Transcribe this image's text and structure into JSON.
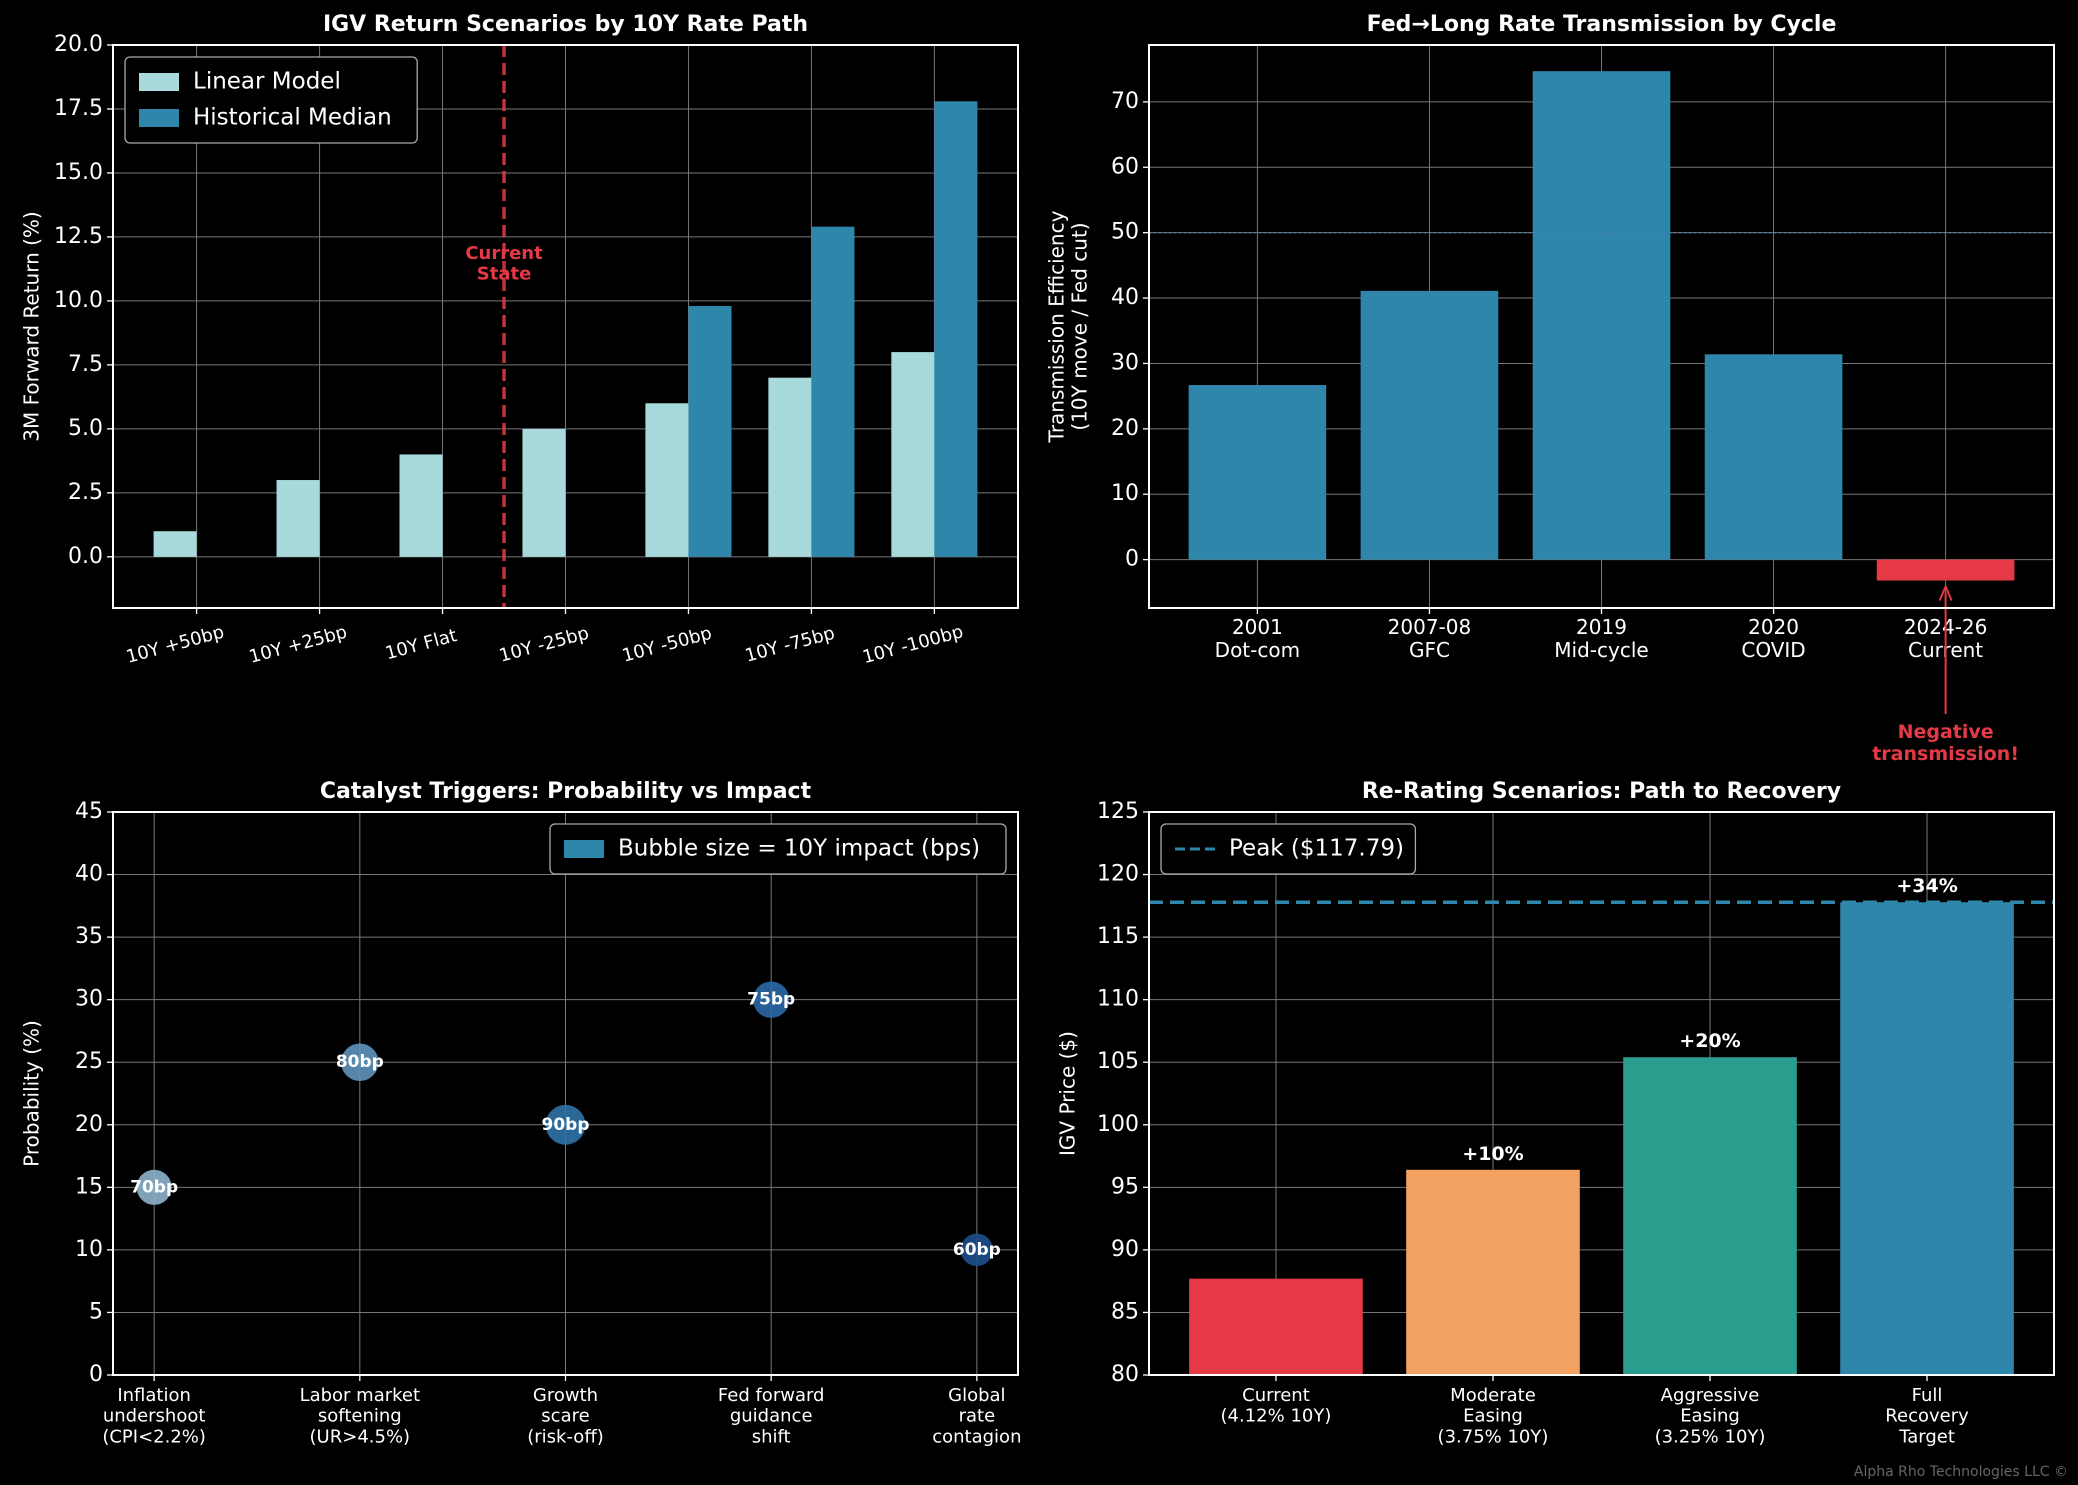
{
  "chart_data": [
    {
      "type": "bar",
      "title": "IGV Return Scenarios by 10Y Rate Path",
      "y_label": "3M Forward Return (%)",
      "categories": [
        "10Y +50bp",
        "10Y +25bp",
        "10Y Flat",
        "10Y -25bp",
        "10Y -50bp",
        "10Y -75bp",
        "10Y -100bp"
      ],
      "series": [
        {
          "name": "Linear Model",
          "color": "#a8dadc",
          "values": [
            1,
            3,
            4,
            5,
            6,
            7,
            8
          ]
        },
        {
          "name": "Historical Median",
          "color": "#2e86ab",
          "values": [
            null,
            null,
            null,
            null,
            9.8,
            12.9,
            17.8
          ]
        }
      ],
      "ylim": [
        -2,
        20
      ],
      "yticks": [
        {
          "value": 0,
          "label": "0.0"
        },
        {
          "value": 2.5,
          "label": "2.5"
        },
        {
          "value": 5,
          "label": "5.0"
        },
        {
          "value": 7.5,
          "label": "7.5"
        },
        {
          "value": 10,
          "label": "10.0"
        },
        {
          "value": 12.5,
          "label": "12.5"
        },
        {
          "value": 15,
          "label": "15.0"
        },
        {
          "value": 17.5,
          "label": "17.5"
        },
        {
          "value": 20,
          "label": "20.0"
        }
      ],
      "grid": true,
      "legend": "upper left",
      "annotation": "Current\nState",
      "annotation_color": "#e63946"
    },
    {
      "type": "bar",
      "title": "Fed→Long Rate Transmission by Cycle",
      "y_label": "Transmission Efficiency\n(10Y move / Fed cut)",
      "categories": [
        "2001\nDot-com",
        "2007-08\nGFC",
        "2019\nMid-cycle",
        "2020\nCOVID",
        "2024-26\nCurrent"
      ],
      "values": [
        26.7,
        41.1,
        74.7,
        31.4,
        -3.2
      ],
      "colors": [
        "#2e86ab",
        "#2e86ab",
        "#2e86ab",
        "#2e86ab",
        "#e63946"
      ],
      "ylim": [
        -7.4,
        78.7
      ],
      "yticks": [
        0,
        10,
        20,
        30,
        40,
        50,
        60,
        70
      ],
      "grid": true,
      "reference_line": 50,
      "reference_color": "#4682b4",
      "reference_style": "dotted",
      "annotation": "Negative\ntransmission!",
      "annotation_color": "#e63946"
    },
    {
      "type": "scatter",
      "title": "Catalyst Triggers: Probability vs Impact",
      "y_label": "Probability (%)",
      "categories": [
        "Inflation\nundershoot\n(CPI<2.2%)",
        "Labor market\nsoftening\n(UR>4.5%)",
        "Growth\nscare\n(risk-off)",
        "Fed forward\nguidance\nshift",
        "Global\nrate\ncontagion"
      ],
      "values": [
        15,
        25,
        20,
        30,
        10
      ],
      "sizes": [
        70,
        80,
        90,
        75,
        60
      ],
      "size_labels": [
        "70bp",
        "80bp",
        "90bp",
        "75bp",
        "60bp"
      ],
      "colors": [
        "#8db4cc",
        "#5f93bb",
        "#2f73a8",
        "#2a68a6",
        "#1d4f8c"
      ],
      "ylim": [
        0,
        45
      ],
      "yticks": [
        0,
        5,
        10,
        15,
        20,
        25,
        30,
        35,
        40,
        45
      ],
      "grid": true,
      "legend": "upper right",
      "legend_label": "Bubble size = 10Y impact (bps)",
      "legend_color": "#2e86ab"
    },
    {
      "type": "bar",
      "title": "Re-Rating Scenarios: Path to Recovery",
      "y_label": "IGV Price ($)",
      "categories": [
        "Current\n(4.12% 10Y)",
        "Moderate\nEasing\n(3.75% 10Y)",
        "Aggressive\nEasing\n(3.25% 10Y)",
        "Full\nRecovery\nTarget"
      ],
      "values": [
        87.7,
        96.4,
        105.4,
        117.79
      ],
      "colors": [
        "#e63946",
        "#f4a261",
        "#2a9d8f",
        "#2e86ab"
      ],
      "bar_labels": [
        null,
        "+10%",
        "+20%",
        "+34%"
      ],
      "ylim": [
        80,
        125
      ],
      "yticks": [
        80,
        85,
        90,
        95,
        100,
        105,
        110,
        115,
        120,
        125
      ],
      "grid": true,
      "reference_line": 117.79,
      "reference_label": "Peak ($117.79)",
      "reference_color": "#2e86ab",
      "reference_style": "dashed",
      "legend": "upper left"
    }
  ],
  "footer": "Alpha Rho Technologies LLC ©"
}
